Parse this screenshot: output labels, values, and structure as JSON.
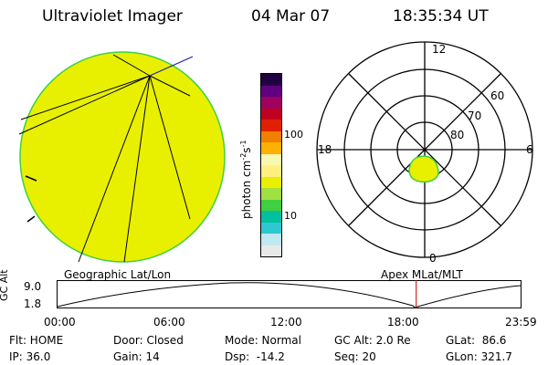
{
  "header": {
    "instrument": "Ultraviolet Imager",
    "date": "04 Mar 07",
    "time": "18:35:34 UT"
  },
  "colorbar": {
    "unit_label": "photon cm",
    "unit_exp1": "-2",
    "unit_mid": "s",
    "unit_exp2": "-1",
    "tick_high": "100",
    "tick_low": "10",
    "colors": [
      "#e8e8e8",
      "#c0e8f0",
      "#30c8d0",
      "#00c0a0",
      "#40d040",
      "#a0e040",
      "#e8f000",
      "#fff080",
      "#f8f8b0",
      "#ffb000",
      "#f08000",
      "#e02000",
      "#c00020",
      "#a00060",
      "#600080",
      "#200040"
    ]
  },
  "polar_plot": {
    "mlt_12": "12",
    "mlt_18": "18",
    "mlt_6": "6",
    "mlt_0": "0",
    "lat_60": "60",
    "lat_70": "70",
    "lat_80": "80"
  },
  "timeline": {
    "ylabel": "GC Alt",
    "left_label": "Geographic Lat/Lon",
    "right_label": "Apex MLat/MLT",
    "y_top": "9.0",
    "y_bottom": "1.8",
    "x_ticks": [
      "00:00",
      "06:00",
      "12:00",
      "18:00",
      "23:59"
    ],
    "current_time_hours": 18.59
  },
  "status": {
    "flt": "Flt: HOME",
    "ip": "IP: 36.0",
    "door": "Door: Closed",
    "gain": "Gain: 14",
    "mode": "Mode: Normal",
    "dsp": "Dsp:  -14.2",
    "gc_alt": "GC Alt: 2.0 Re",
    "seq": "Seq: 20",
    "glat": "GLat:  86.6",
    "glon": "GLon: 321.7"
  },
  "colors": {
    "disk_fill": "#e8f000",
    "disk_edge": "#40d040",
    "cursor_line": "#c00000",
    "grid_line": "#1a1aa0"
  }
}
